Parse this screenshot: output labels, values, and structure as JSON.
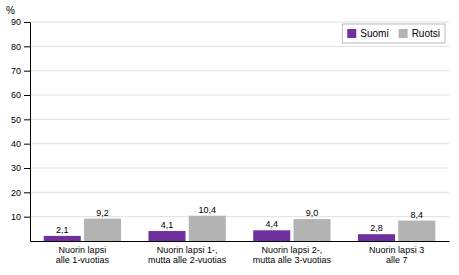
{
  "chart_data": {
    "type": "bar",
    "ylabel": "%",
    "categories": [
      "Nuorin lapsi\nalle 1-vuotias",
      "Nuorin lapsi 1-,\nmutta alle 2-vuotias",
      "Nuorin lapsi 2-,\nmutta alle 3-vuotias",
      "Nuorin lapsi 3\nalle 7"
    ],
    "series": [
      {
        "name": "Suomi",
        "color": "#7030a0",
        "values": [
          2.1,
          4.1,
          4.4,
          2.8
        ],
        "value_labels": [
          "2,1",
          "4,1",
          "4,4",
          "2,8"
        ]
      },
      {
        "name": "Ruotsi",
        "color": "#b3b3b3",
        "values": [
          9.2,
          10.4,
          9.0,
          8.4
        ],
        "value_labels": [
          "9,2",
          "10,4",
          "9,0",
          "8,4"
        ]
      }
    ],
    "ylim": [
      0,
      90
    ],
    "yticks": [
      10,
      20,
      30,
      40,
      50,
      60,
      70,
      80,
      90
    ],
    "grid": true,
    "legend": "upper right",
    "data_labels": true
  }
}
